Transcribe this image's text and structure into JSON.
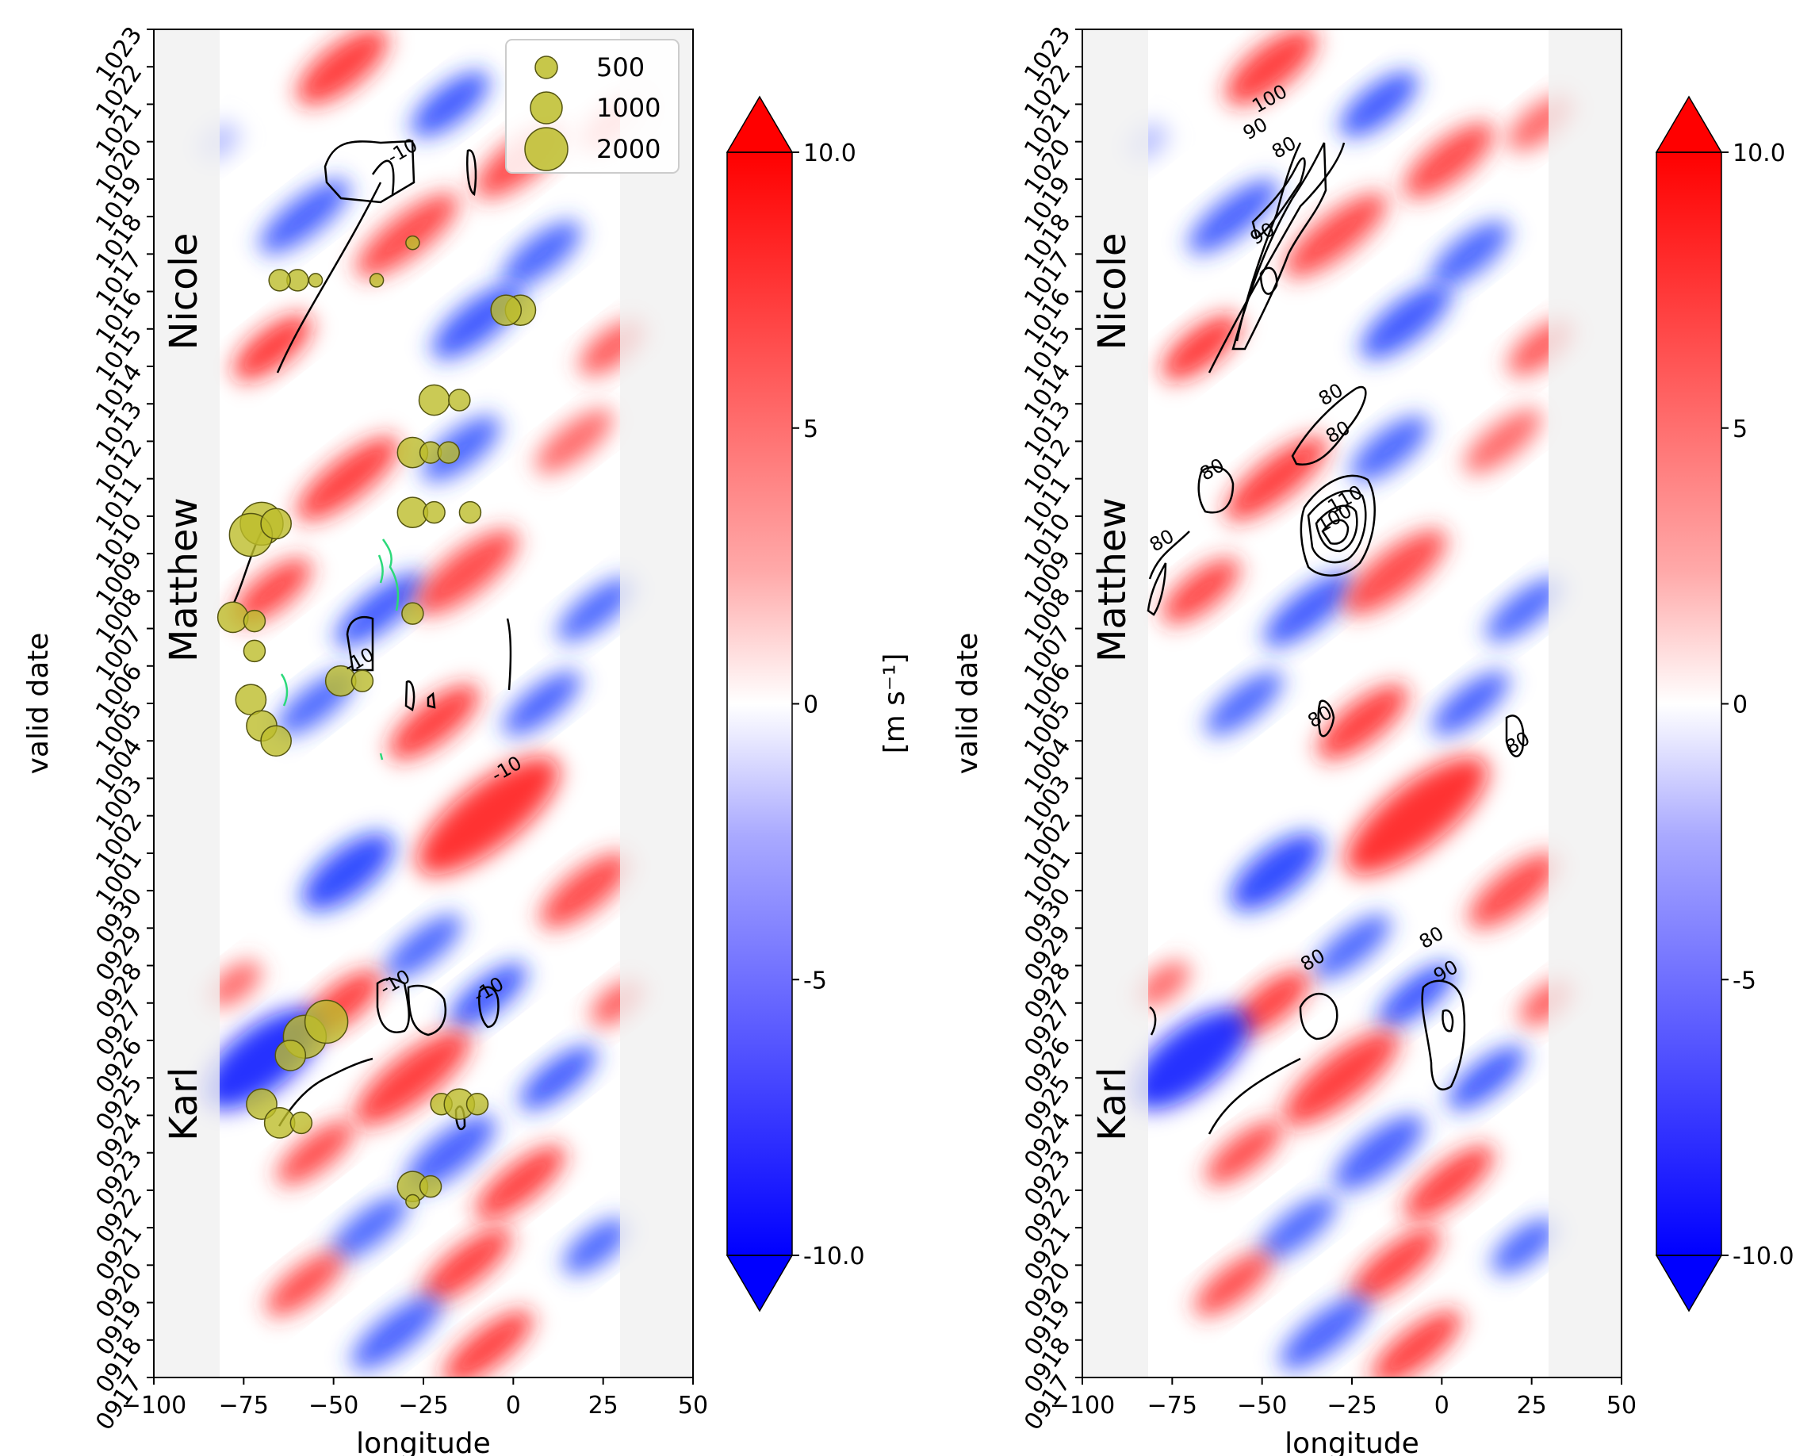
{
  "chart_data": [
    {
      "type": "heatmap",
      "panel": "left",
      "xlabel": "longitude",
      "ylabel": "valid date",
      "xlim": [
        -100,
        50
      ],
      "x_ticks": [
        "−100",
        "−75",
        "−50",
        "−25",
        "0",
        "25",
        "50"
      ],
      "x_tick_values": [
        -100,
        -75,
        -50,
        -25,
        0,
        25,
        50
      ],
      "date_ticks": [
        "0917",
        "0918",
        "0919",
        "0920",
        "0921",
        "0922",
        "0923",
        "0924",
        "0925",
        "0926",
        "0927",
        "0928",
        "0929",
        "0930",
        "1001",
        "1002",
        "1003",
        "1004",
        "1005",
        "1006",
        "1007",
        "1008",
        "1009",
        "1010",
        "1011",
        "1012",
        "1013",
        "1014",
        "1015",
        "1016",
        "1017",
        "1018",
        "1019",
        "1020",
        "1021",
        "1022",
        "1023"
      ],
      "storm_labels": [
        {
          "name": "Nicole",
          "date_index": 29.0
        },
        {
          "name": "Matthew",
          "date_index": 21.3
        },
        {
          "name": "Karl",
          "date_index": 7.3
        }
      ],
      "legend": {
        "placement": "top-right",
        "entries": [
          "500",
          "1000",
          "2000"
        ]
      },
      "contour_labels": [
        {
          "text": "-10",
          "lon": -30,
          "date_index": 32.6
        },
        {
          "text": "-10",
          "lon": -42,
          "date_index": 19.0
        },
        {
          "text": "-10",
          "lon": -1,
          "date_index": 16.1
        },
        {
          "text": "-10",
          "lon": -32,
          "date_index": 10.4
        },
        {
          "text": "-10",
          "lon": -6,
          "date_index": 10.2
        }
      ],
      "bubbles": [
        {
          "lon": -70,
          "date_index": 22.8,
          "size": 2000
        },
        {
          "lon": -73,
          "date_index": 22.5,
          "size": 2000
        },
        {
          "lon": -66,
          "date_index": 22.8,
          "size": 1000
        },
        {
          "lon": -78,
          "date_index": 20.3,
          "size": 1000
        },
        {
          "lon": -72,
          "date_index": 20.2,
          "size": 500
        },
        {
          "lon": -72,
          "date_index": 19.4,
          "size": 500
        },
        {
          "lon": -73,
          "date_index": 18.1,
          "size": 1000
        },
        {
          "lon": -70,
          "date_index": 17.4,
          "size": 1000
        },
        {
          "lon": -66,
          "date_index": 17.0,
          "size": 1000
        },
        {
          "lon": -48,
          "date_index": 18.6,
          "size": 1000
        },
        {
          "lon": -42,
          "date_index": 18.6,
          "size": 500
        },
        {
          "lon": -58,
          "date_index": 9.1,
          "size": 2000
        },
        {
          "lon": -52,
          "date_index": 9.5,
          "size": 2000
        },
        {
          "lon": -62,
          "date_index": 8.6,
          "size": 1000
        },
        {
          "lon": -70,
          "date_index": 7.3,
          "size": 1000
        },
        {
          "lon": -65,
          "date_index": 6.8,
          "size": 1000
        },
        {
          "lon": -59,
          "date_index": 6.8,
          "size": 500
        },
        {
          "lon": -20,
          "date_index": 7.3,
          "size": 500
        },
        {
          "lon": -15,
          "date_index": 7.3,
          "size": 1000
        },
        {
          "lon": -10,
          "date_index": 7.3,
          "size": 500
        },
        {
          "lon": -28,
          "date_index": 5.1,
          "size": 1000
        },
        {
          "lon": -23,
          "date_index": 5.1,
          "size": 500
        },
        {
          "lon": -28,
          "date_index": 4.7,
          "size": 200
        },
        {
          "lon": -22,
          "date_index": 26.1,
          "size": 1000
        },
        {
          "lon": -15,
          "date_index": 26.1,
          "size": 500
        },
        {
          "lon": -28,
          "date_index": 24.7,
          "size": 1000
        },
        {
          "lon": -23,
          "date_index": 24.7,
          "size": 500
        },
        {
          "lon": -18,
          "date_index": 24.7,
          "size": 500
        },
        {
          "lon": -28,
          "date_index": 23.1,
          "size": 1000
        },
        {
          "lon": -22,
          "date_index": 23.1,
          "size": 500
        },
        {
          "lon": -12,
          "date_index": 23.1,
          "size": 500
        },
        {
          "lon": -28,
          "date_index": 20.4,
          "size": 500
        },
        {
          "lon": 2,
          "date_index": 28.5,
          "size": 1000
        },
        {
          "lon": -2,
          "date_index": 28.5,
          "size": 1000
        },
        {
          "lon": -28,
          "date_index": 30.3,
          "size": 200
        },
        {
          "lon": -60,
          "date_index": 29.3,
          "size": 500
        },
        {
          "lon": -65,
          "date_index": 29.3,
          "size": 500
        },
        {
          "lon": -55,
          "date_index": 29.3,
          "size": 200
        },
        {
          "lon": -38,
          "date_index": 29.3,
          "size": 200
        }
      ]
    },
    {
      "type": "heatmap",
      "panel": "right",
      "xlabel": "longitude",
      "ylabel": "valid date",
      "xlim": [
        -100,
        50
      ],
      "x_ticks": [
        "−100",
        "−75",
        "−50",
        "−25",
        "0",
        "25",
        "50"
      ],
      "x_tick_values": [
        -100,
        -75,
        -50,
        -25,
        0,
        25,
        50
      ],
      "date_ticks": [
        "0917",
        "0918",
        "0919",
        "0920",
        "0921",
        "0922",
        "0923",
        "0924",
        "0925",
        "0926",
        "0927",
        "0928",
        "0929",
        "0930",
        "1001",
        "1002",
        "1003",
        "1004",
        "1005",
        "1006",
        "1007",
        "1008",
        "1009",
        "1010",
        "1011",
        "1012",
        "1013",
        "1014",
        "1015",
        "1016",
        "1017",
        "1018",
        "1019",
        "1020",
        "1021",
        "1022",
        "1023"
      ],
      "storm_labels": [
        {
          "name": "Nicole",
          "date_index": 29.0
        },
        {
          "name": "Matthew",
          "date_index": 21.3
        },
        {
          "name": "Karl",
          "date_index": 7.3
        }
      ],
      "contour_labels": [
        {
          "text": "100",
          "lon": -47,
          "date_index": 34.0
        },
        {
          "text": "90",
          "lon": -51,
          "date_index": 33.2
        },
        {
          "text": "80",
          "lon": -43,
          "date_index": 32.7
        },
        {
          "text": "90",
          "lon": -49,
          "date_index": 30.4
        },
        {
          "text": "80",
          "lon": -30,
          "date_index": 26.1
        },
        {
          "text": "80",
          "lon": -28,
          "date_index": 25.1
        },
        {
          "text": "80",
          "lon": -63,
          "date_index": 24.1
        },
        {
          "text": "110",
          "lon": -26,
          "date_index": 23.3
        },
        {
          "text": "100",
          "lon": -29,
          "date_index": 22.8
        },
        {
          "text": "80",
          "lon": -77,
          "date_index": 22.2
        },
        {
          "text": "80",
          "lon": -33,
          "date_index": 17.5
        },
        {
          "text": "80",
          "lon": 22,
          "date_index": 16.8
        },
        {
          "text": "80",
          "lon": -35,
          "date_index": 11.0
        },
        {
          "text": "80",
          "lon": -2,
          "date_index": 11.6
        },
        {
          "text": "90",
          "lon": 2,
          "date_index": 10.7
        }
      ]
    }
  ],
  "colorbar": {
    "ticks": [
      "10.0",
      "5",
      "0",
      "-5",
      "-10.0"
    ],
    "values": [
      10,
      5,
      0,
      -5,
      -10
    ],
    "vmin": -10,
    "vmax": 10,
    "extend": "both",
    "unit_label": "[m s⁻¹]",
    "colormap": "bwr",
    "colors": {
      "low": "#0000ff",
      "mid": "#ffffff",
      "high": "#ff0000"
    }
  }
}
